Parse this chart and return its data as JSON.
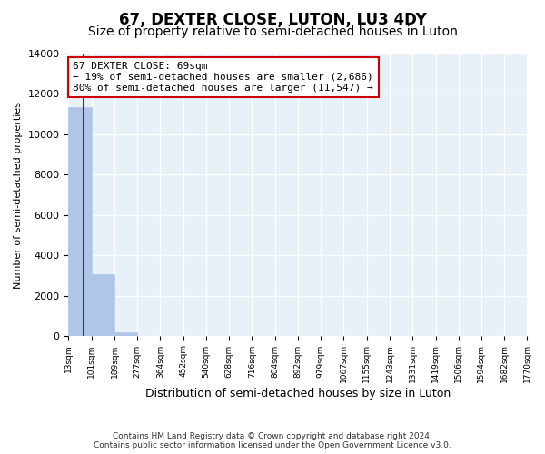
{
  "title": "67, DEXTER CLOSE, LUTON, LU3 4DY",
  "subtitle": "Size of property relative to semi-detached houses in Luton",
  "xlabel": "Distribution of semi-detached houses by size in Luton",
  "ylabel": "Number of semi-detached properties",
  "bin_edges": [
    13,
    101,
    189,
    277,
    364,
    452,
    540,
    628,
    716,
    804,
    892,
    979,
    1067,
    1155,
    1243,
    1331,
    1419,
    1506,
    1594,
    1682,
    1770
  ],
  "bar_heights": [
    11350,
    3050,
    200,
    0,
    0,
    0,
    0,
    0,
    0,
    0,
    0,
    0,
    0,
    0,
    0,
    0,
    0,
    0,
    0,
    0
  ],
  "bar_color": "#aec6e8",
  "bar_edge_color": "#aec6e8",
  "property_size": 69,
  "property_line_color": "#cc0000",
  "annotation_text": "67 DEXTER CLOSE: 69sqm\n← 19% of semi-detached houses are smaller (2,686)\n80% of semi-detached houses are larger (11,547) →",
  "annotation_box_color": "#ffffff",
  "annotation_box_edge": "#cc0000",
  "ylim": [
    0,
    14000
  ],
  "yticks": [
    0,
    2000,
    4000,
    6000,
    8000,
    10000,
    12000,
    14000
  ],
  "background_color": "#e8f0f8",
  "grid_color": "#ffffff",
  "footer_line1": "Contains HM Land Registry data © Crown copyright and database right 2024.",
  "footer_line2": "Contains public sector information licensed under the Open Government Licence v3.0.",
  "title_fontsize": 12,
  "subtitle_fontsize": 10,
  "annotation_fontsize": 8,
  "ylabel_fontsize": 8,
  "xlabel_fontsize": 9
}
